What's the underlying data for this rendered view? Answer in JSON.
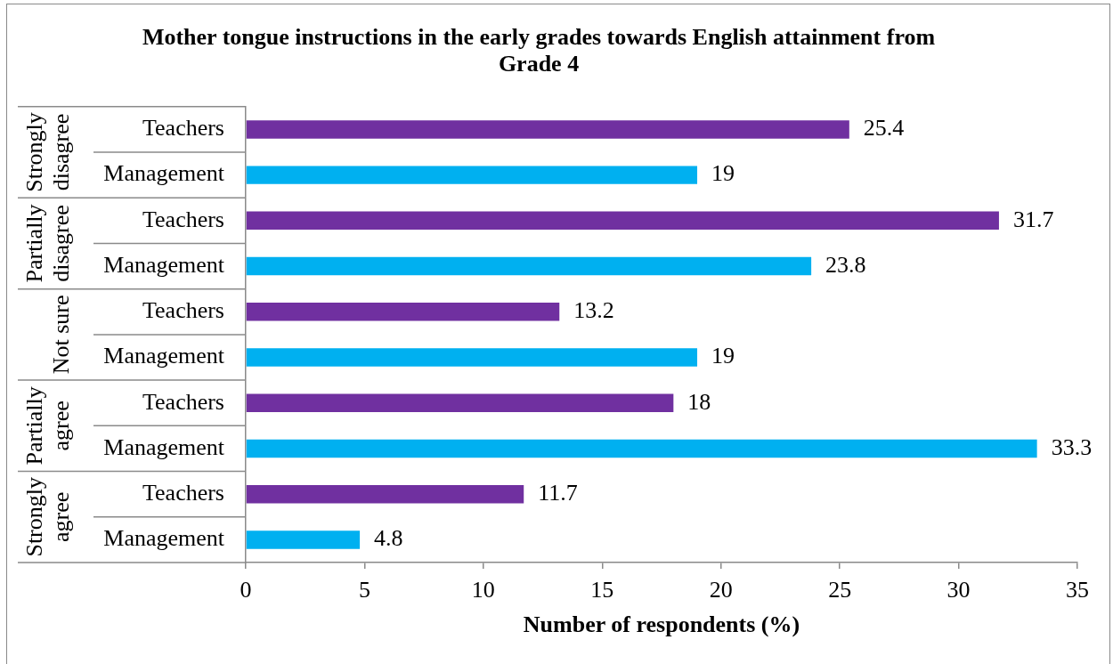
{
  "chart_data": {
    "type": "bar",
    "orientation": "horizontal",
    "title": "Mother tongue instructions in the early grades towards English attainment from Grade 4",
    "xlabel": "Number of respondents (%)",
    "categories": [
      "Strongly disagree",
      "Partially disagree",
      "Not sure",
      "Partially agree",
      "Strongly agree"
    ],
    "series": [
      {
        "name": "Teachers",
        "color": "#7030a0",
        "values": [
          25.4,
          31.7,
          13.2,
          18,
          11.7
        ]
      },
      {
        "name": "Management",
        "color": "#00b0f0",
        "values": [
          19,
          23.8,
          19,
          33.3,
          4.8
        ]
      }
    ],
    "xlim": [
      0,
      35
    ],
    "xticks": [
      0,
      5,
      10,
      15,
      20,
      25,
      30,
      35
    ],
    "data_labels": true
  }
}
